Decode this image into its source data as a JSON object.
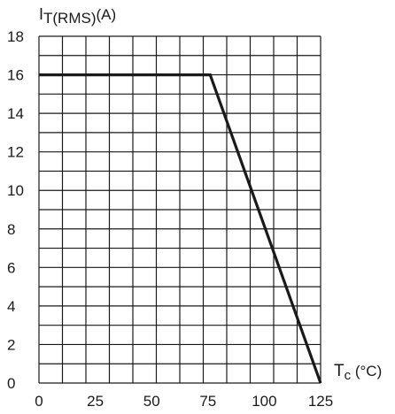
{
  "chart_data": {
    "type": "line",
    "title": "",
    "ylabel": {
      "main": "I",
      "sub": "T(RMS)",
      "unit": "(A)"
    },
    "xlabel": {
      "main": "T",
      "sub": "c",
      "unit": "(°C)"
    },
    "xlim": [
      0,
      125
    ],
    "ylim": [
      0,
      18
    ],
    "x_ticks": [
      "0",
      "25",
      "50",
      "75",
      "100",
      "125"
    ],
    "y_ticks": [
      "0",
      "2",
      "4",
      "6",
      "8",
      "10",
      "12",
      "14",
      "16",
      "18"
    ],
    "grid": true,
    "series": [
      {
        "x": [
          0,
          76,
          125
        ],
        "y": [
          16,
          16,
          0
        ]
      }
    ],
    "colors": {
      "line": "#1a1a1a",
      "grid": "#1a1a1a",
      "background": "#ffffff"
    }
  }
}
